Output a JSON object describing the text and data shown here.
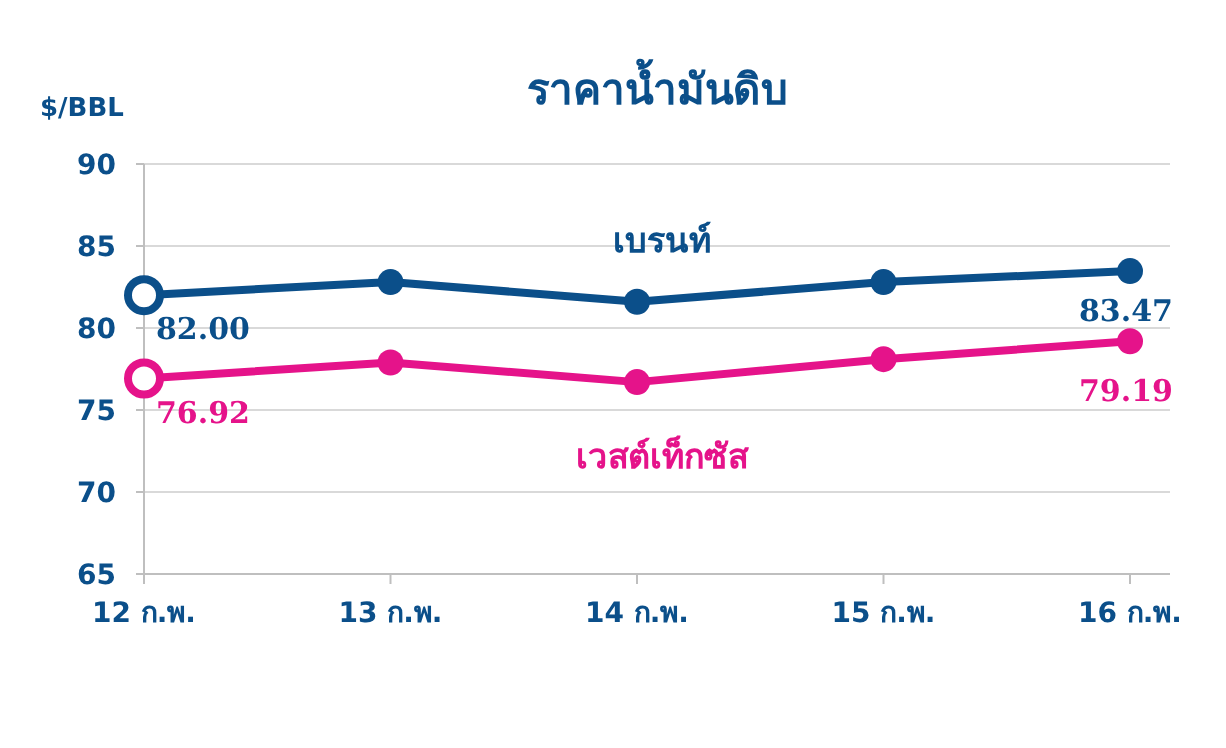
{
  "chart_data": {
    "type": "line",
    "title": "ราคาน้ำมันดิบ",
    "ylabel": "$/BBL",
    "categories": [
      "12 ก.พ.",
      "13 ก.พ.",
      "14 ก.พ.",
      "15 ก.พ.",
      "16 ก.พ."
    ],
    "series": [
      {
        "name": "เบรนท์",
        "color": "#0b4f8a",
        "values": [
          82.0,
          82.8,
          81.6,
          82.8,
          83.47
        ],
        "value_labels": [
          "82.00",
          null,
          null,
          null,
          "83.47"
        ]
      },
      {
        "name": "เวสต์เท็กซัส",
        "color": "#e5138a",
        "values": [
          76.92,
          77.9,
          76.7,
          78.1,
          79.19
        ],
        "value_labels": [
          "76.92",
          null,
          null,
          null,
          "79.19"
        ]
      }
    ],
    "ylim": [
      65,
      90
    ],
    "yticks": [
      65,
      70,
      75,
      80,
      85,
      90
    ],
    "grid": "y",
    "marker": "circle",
    "line_style": "solid"
  }
}
